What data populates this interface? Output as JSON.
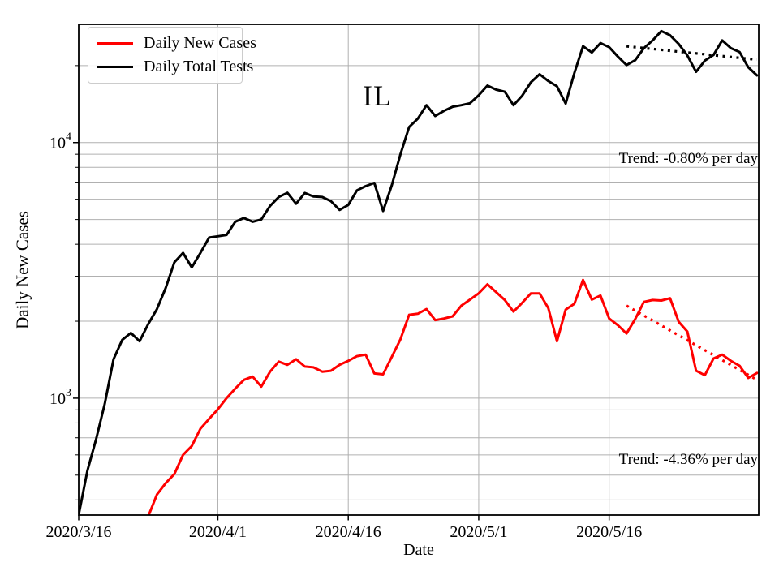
{
  "figure": {
    "legend": [
      {
        "label": "Daily New Cases",
        "color": "#ff0000"
      },
      {
        "label": "Daily Total Tests",
        "color": "#000000"
      }
    ]
  },
  "chart_data": {
    "type": "line",
    "title": "IL",
    "xlabel": "Date",
    "ylabel": "Daily New Cases",
    "y_scale": "log",
    "grid": true,
    "grid_color": "#b0b0b0",
    "legend_position": "upper left",
    "ylim": [
      349,
      29000
    ],
    "xlim_days": [
      0,
      78.2
    ],
    "x_start_date": "2020/3/16",
    "x_end_date": "2020/6/2",
    "x_ticks": [
      {
        "day": 0,
        "label": "2020/3/16"
      },
      {
        "day": 16,
        "label": "2020/4/1"
      },
      {
        "day": 31,
        "label": "2020/4/16"
      },
      {
        "day": 46,
        "label": "2020/5/1"
      },
      {
        "day": 61,
        "label": "2020/5/16"
      }
    ],
    "y_ticks": [
      {
        "value": 10000,
        "base": "10",
        "exp": "4"
      },
      {
        "value": 1000,
        "base": "10",
        "exp": "3"
      }
    ],
    "y_minor_grid": [
      400,
      500,
      600,
      700,
      800,
      900,
      2000,
      3000,
      4000,
      5000,
      6000,
      7000,
      8000,
      9000,
      20000
    ],
    "series": [
      {
        "name": "Daily New Cases",
        "color": "#ff0000",
        "cadence": "daily",
        "start_date": "2020/3/24",
        "start_day": 8,
        "values": [
          345,
          420,
          465,
          505,
          600,
          650,
          760,
          830,
          905,
          1000,
          1090,
          1180,
          1215,
          1110,
          1270,
          1390,
          1350,
          1420,
          1330,
          1320,
          1270,
          1280,
          1350,
          1400,
          1460,
          1480,
          1250,
          1240,
          1450,
          1700,
          2120,
          2140,
          2230,
          2020,
          2050,
          2090,
          2300,
          2430,
          2570,
          2790,
          2600,
          2420,
          2180,
          2360,
          2570,
          2570,
          2250,
          1670,
          2220,
          2340,
          2900,
          2430,
          2520,
          2050,
          1930,
          1790,
          2040,
          2380,
          2420,
          2410,
          2460,
          1990,
          1820,
          1280,
          1230,
          1430,
          1480,
          1400,
          1340,
          1200,
          1255
        ]
      },
      {
        "name": "Daily Total Tests",
        "color": "#000000",
        "cadence": "daily",
        "start_date": "2020/3/16",
        "start_day": 0,
        "values": [
          350,
          520,
          690,
          950,
          1420,
          1690,
          1800,
          1670,
          1950,
          2230,
          2700,
          3400,
          3700,
          3250,
          3700,
          4250,
          4300,
          4350,
          4900,
          5070,
          4900,
          5000,
          5650,
          6120,
          6360,
          5760,
          6350,
          6150,
          6120,
          5900,
          5450,
          5700,
          6500,
          6750,
          6950,
          5400,
          6800,
          9000,
          11500,
          12400,
          14000,
          12700,
          13300,
          13800,
          14000,
          14250,
          15300,
          16700,
          16100,
          15800,
          14000,
          15250,
          17200,
          18500,
          17400,
          16600,
          14200,
          18700,
          23800,
          22500,
          24500,
          23600,
          21700,
          20100,
          21000,
          23400,
          25100,
          27300,
          26300,
          24300,
          21900,
          18900,
          20900,
          22000,
          25100,
          23400,
          22600,
          19700,
          18300
        ]
      }
    ],
    "trend_lines": [
      {
        "name": "tests-trend",
        "series": "Daily Total Tests",
        "label": "Trend: -0.80% per day",
        "percent_per_day": -0.8,
        "color": "#000000",
        "start_day": 63,
        "end_day": 78,
        "start_value": 23800,
        "end_value": 21100
      },
      {
        "name": "cases-trend",
        "series": "Daily New Cases",
        "label": "Trend: -4.36% per day",
        "percent_per_day": -4.36,
        "color": "#ff0000",
        "start_day": 63,
        "end_day": 78,
        "start_value": 2300,
        "end_value": 1180
      }
    ]
  }
}
